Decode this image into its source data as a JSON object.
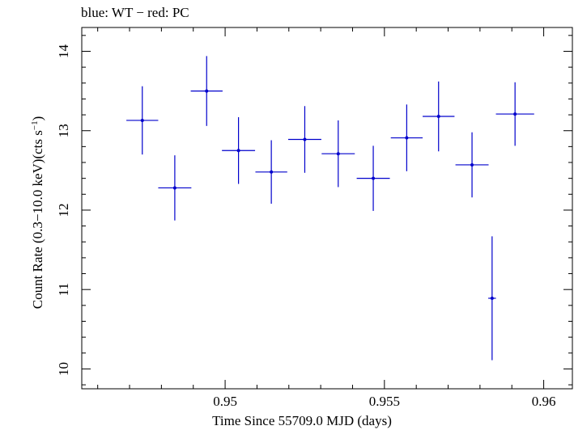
{
  "chart_data": {
    "type": "scatter",
    "title": "blue: WT − red: PC",
    "xlabel": "Time Since 55709.0 MJD (days)",
    "ylabel_main": "Count Rate (0.3−10.0 keV)(cts s",
    "ylabel_sup": "−1",
    "ylabel_close": ")",
    "xlim": [
      0.9455,
      0.9609
    ],
    "ylim": [
      9.75,
      14.3
    ],
    "xticks": [
      0.95,
      0.955,
      0.96
    ],
    "xtick_labels": [
      "0.95",
      "0.955",
      "0.96"
    ],
    "yticks": [
      10,
      11,
      12,
      13,
      14
    ],
    "ytick_labels": [
      "10",
      "11",
      "12",
      "13",
      "14"
    ],
    "series": [
      {
        "name": "WT",
        "color": "#0000cc",
        "points": [
          {
            "x": 0.9474,
            "y": 13.13,
            "xerr": 0.0005,
            "yerr": 0.43
          },
          {
            "x": 0.94842,
            "y": 12.28,
            "xerr": 0.00052,
            "yerr": 0.41
          },
          {
            "x": 0.94942,
            "y": 13.5,
            "xerr": 0.0005,
            "yerr": 0.44
          },
          {
            "x": 0.95042,
            "y": 12.75,
            "xerr": 0.00052,
            "yerr": 0.42
          },
          {
            "x": 0.95145,
            "y": 12.48,
            "xerr": 0.0005,
            "yerr": 0.4
          },
          {
            "x": 0.9525,
            "y": 12.89,
            "xerr": 0.00052,
            "yerr": 0.42
          },
          {
            "x": 0.95355,
            "y": 12.71,
            "xerr": 0.00052,
            "yerr": 0.42
          },
          {
            "x": 0.95465,
            "y": 12.4,
            "xerr": 0.00052,
            "yerr": 0.41
          },
          {
            "x": 0.9557,
            "y": 12.91,
            "xerr": 0.0005,
            "yerr": 0.42
          },
          {
            "x": 0.9567,
            "y": 13.18,
            "xerr": 0.0005,
            "yerr": 0.44
          },
          {
            "x": 0.95775,
            "y": 12.57,
            "xerr": 0.00052,
            "yerr": 0.41
          },
          {
            "x": 0.95838,
            "y": 10.89,
            "xerr": 0.00012,
            "yerr": 0.78
          },
          {
            "x": 0.9591,
            "y": 13.21,
            "xerr": 0.0006,
            "yerr": 0.4
          }
        ]
      }
    ]
  }
}
